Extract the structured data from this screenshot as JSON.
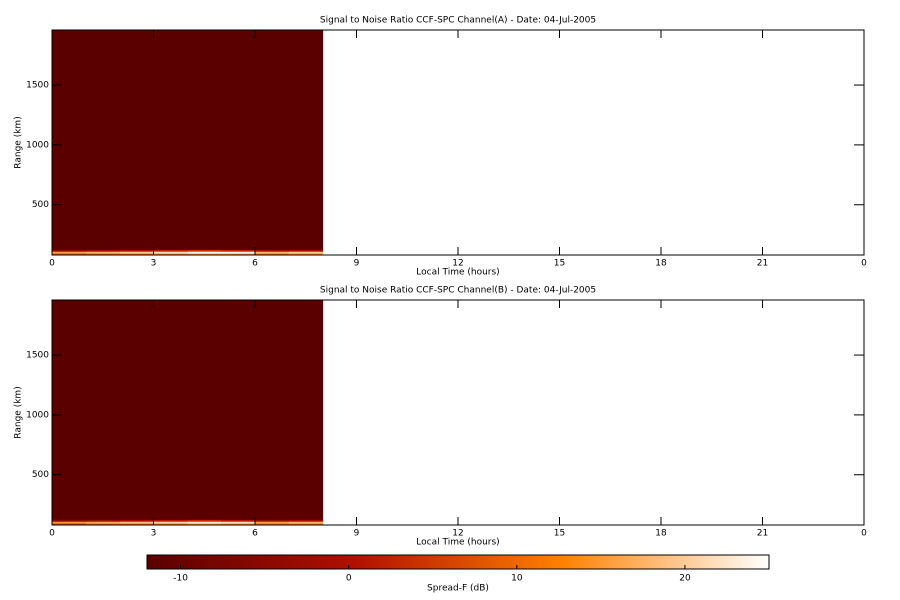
{
  "chart_data": [
    {
      "type": "heatmap",
      "title": "Signal to Noise Ratio CCF-SPC Channel(A) - Date: 04-Jul-2005",
      "x_label": "Local Time (hours)",
      "y_label": "Range (km)",
      "xlim": [
        0,
        24
      ],
      "xticks": [
        0,
        3,
        6,
        9,
        12,
        15,
        18,
        21,
        {
          "value": 24,
          "label": "0"
        }
      ],
      "ylim": [
        80,
        1960
      ],
      "yticks": [
        500,
        1000,
        1500
      ],
      "x_edges": [
        0,
        1,
        2,
        3,
        4,
        5,
        6,
        7,
        8
      ],
      "y_edges": [
        80,
        95,
        110,
        125,
        1960
      ],
      "z": [
        [
          8,
          10,
          12,
          14,
          16,
          16,
          12,
          14
        ],
        [
          16,
          18,
          20,
          22,
          24,
          24,
          18,
          20
        ],
        [
          -4,
          -2,
          0,
          2,
          4,
          2,
          -2,
          0
        ],
        [
          -12,
          -12,
          -12,
          -12,
          -12,
          -12,
          -12,
          -12
        ]
      ]
    },
    {
      "type": "heatmap",
      "title": "Signal to Noise Ratio CCF-SPC Channel(B) - Date: 04-Jul-2005",
      "x_label": "Local Time (hours)",
      "y_label": "Range (km)",
      "xlim": [
        0,
        24
      ],
      "xticks": [
        0,
        3,
        6,
        9,
        12,
        15,
        18,
        21,
        {
          "value": 24,
          "label": "0"
        }
      ],
      "ylim": [
        80,
        1960
      ],
      "yticks": [
        500,
        1000,
        1500
      ],
      "x_edges": [
        0,
        1,
        2,
        3,
        4,
        5,
        6,
        7,
        8
      ],
      "y_edges": [
        80,
        95,
        110,
        125,
        1960
      ],
      "z": [
        [
          6,
          10,
          11,
          13,
          15,
          14,
          10,
          12
        ],
        [
          15,
          17,
          19,
          21,
          23,
          22,
          16,
          18
        ],
        [
          -5,
          -3,
          -1,
          1,
          3,
          1,
          -3,
          -1
        ],
        [
          -12,
          -12,
          -12,
          -12,
          -12,
          -12,
          -12,
          -12
        ]
      ]
    }
  ],
  "colorbar": {
    "label": "Spread-F (dB)",
    "clim": [
      -12,
      25
    ],
    "ticks": [
      -10,
      0,
      10,
      20
    ],
    "colormap": [
      "#5a0000",
      "#b01000",
      "#ff8000",
      "#ffffff"
    ]
  }
}
